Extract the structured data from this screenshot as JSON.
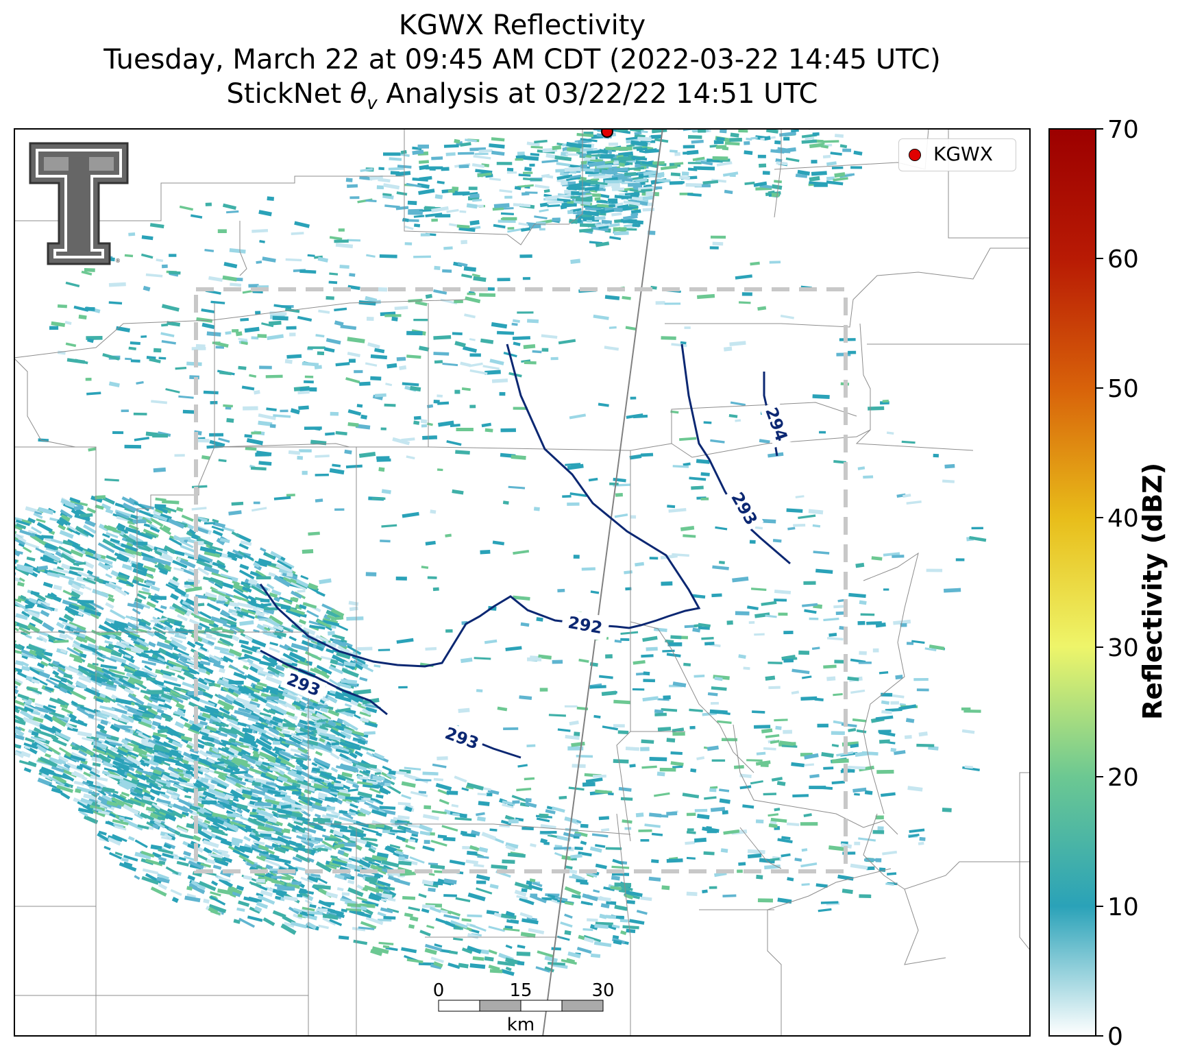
{
  "title": {
    "line1": "KGWX Reflectivity",
    "line2": "Tuesday, March 22 at 09:45 AM CDT (2022-03-22 14:45 UTC)",
    "line3_prefix": "StickNet ",
    "line3_suffix": " Analysis at 03/22/22 14:51 UTC"
  },
  "legend": {
    "label": "KGWX",
    "marker_color": "#e00000"
  },
  "colorbar": {
    "label": "Reflectivity (dBZ)",
    "min": 0,
    "max": 70,
    "ticks": [
      "0",
      "10",
      "20",
      "30",
      "40",
      "50",
      "60",
      "70"
    ],
    "colors": [
      "#ffffff",
      "#2aa2b8",
      "#6cc892",
      "#eef56a",
      "#e8bd1a",
      "#d8620a",
      "#b81a04",
      "#9c0000"
    ]
  },
  "scalebar": {
    "ticks": [
      "0",
      "15",
      "30"
    ],
    "unit": "km"
  },
  "contours": [
    {
      "label": "292",
      "value": 292
    },
    {
      "label": "293",
      "value": 293
    },
    {
      "label": "294",
      "value": 294
    },
    {
      "label": "293",
      "value": 293
    },
    {
      "label": "293",
      "value": 293
    }
  ],
  "colors": {
    "contour": "#0b2772",
    "analysis_box": "#c8c8c8",
    "borders": "#8c8c8c"
  }
}
